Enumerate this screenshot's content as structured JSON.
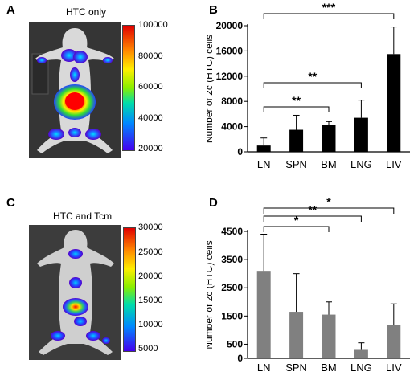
{
  "panels": {
    "a": {
      "letter": "A",
      "title": "HTC only",
      "colorbar_ticks": [
        "100000",
        "80000",
        "60000",
        "40000",
        "20000"
      ]
    },
    "b": {
      "letter": "B"
    },
    "c": {
      "letter": "C",
      "title": "HTC and Tcm",
      "colorbar_ticks": [
        "30000",
        "25000",
        "20000",
        "15000",
        "10000",
        "5000"
      ]
    },
    "d": {
      "letter": "D"
    }
  },
  "chart_data": [
    {
      "id": "B",
      "type": "bar",
      "categories": [
        "LN",
        "SPN",
        "BM",
        "LNG",
        "LIV"
      ],
      "values": [
        1000,
        3500,
        4300,
        5400,
        15500
      ],
      "errors": [
        1200,
        2300,
        500,
        2800,
        4300
      ],
      "ylabel": "Number of 2c (HTC) cells",
      "ylim": [
        0,
        20000
      ],
      "yticks": [
        0,
        4000,
        8000,
        12000,
        16000,
        20000
      ],
      "bar_color": "#000000",
      "significance": [
        {
          "from": "LN",
          "to": "BM",
          "label": "**"
        },
        {
          "from": "LN",
          "to": "LNG",
          "label": "**"
        },
        {
          "from": "LN",
          "to": "LIV",
          "label": "***"
        }
      ]
    },
    {
      "id": "D",
      "type": "bar",
      "categories": [
        "LN",
        "SPN",
        "BM",
        "LNG",
        "LIV"
      ],
      "values": [
        3100,
        1650,
        1550,
        300,
        1180
      ],
      "errors": [
        1300,
        1350,
        450,
        250,
        750
      ],
      "ylabel": "Number of 2c (HTC) cells",
      "ylim": [
        0,
        4500
      ],
      "yticks": [
        0,
        500,
        1500,
        2500,
        3500,
        4500
      ],
      "bar_color": "#808080",
      "significance": [
        {
          "from": "LN",
          "to": "BM",
          "label": "*"
        },
        {
          "from": "LN",
          "to": "LNG",
          "label": "**"
        },
        {
          "from": "LN",
          "to": "LIV",
          "label": "*"
        }
      ]
    }
  ]
}
